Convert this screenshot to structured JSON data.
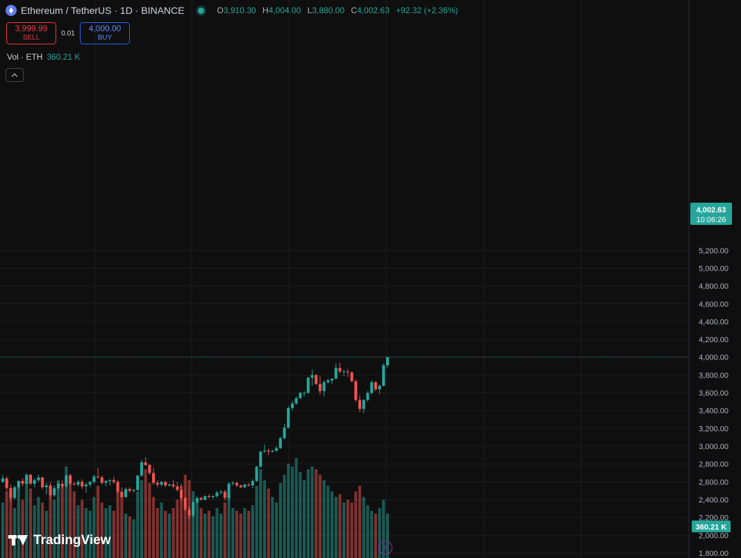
{
  "header": {
    "symbol_title": "Ethereum / TetherUS · 1D · BINANCE",
    "ohlc": {
      "o_label": "O",
      "o": "3,910.30",
      "h_label": "H",
      "h": "4,004.00",
      "l_label": "L",
      "l": "3,880.00",
      "c_label": "C",
      "c": "4,002.63",
      "change": "+92.32 (+2.36%)"
    }
  },
  "trade": {
    "sell_price": "3,999.99",
    "sell_label": "SELL",
    "spread": "0.01",
    "buy_price": "4,000.00",
    "buy_label": "BUY"
  },
  "volume_legend": {
    "label": "Vol · ETH",
    "value": "360.21 K"
  },
  "price_tag": {
    "price": "4,002.63",
    "countdown": "10:06:26"
  },
  "volume_tag": "360.21 K",
  "brand": "TradingView",
  "colors": {
    "up": "#26a69a",
    "down": "#ef5350",
    "background": "#0f0f0f",
    "grid": "#1e1e1e"
  },
  "icons": [
    "ethereum-coin-icon",
    "market-open-dot-icon",
    "collapse-chevron-icon",
    "tradingview-logo-icon",
    "lightning-icon"
  ],
  "chart_data": {
    "type": "candlestick",
    "title": "Ethereum / TetherUS · 1D · BINANCE",
    "ylim": [
      1800,
      5300
    ],
    "y_ticks": [
      "5,200.00",
      "5,000.00",
      "4,800.00",
      "4,600.00",
      "4,400.00",
      "4,200.00",
      "4,000.00",
      "3,800.00",
      "3,600.00",
      "3,400.00",
      "3,200.00",
      "3,000.00",
      "2,800.00",
      "2,600.00",
      "2,400.00",
      "2,200.00",
      "2,000.00",
      "1,800.00"
    ],
    "y_tick_values": [
      5200,
      5000,
      4800,
      4600,
      4400,
      4200,
      4000,
      3800,
      3600,
      3400,
      3200,
      3000,
      2800,
      2600,
      2400,
      2200,
      2000,
      1800
    ],
    "last_price": 4002.63,
    "candles": [
      [
        2600,
        2680,
        2590,
        2640
      ],
      [
        2640,
        2660,
        2500,
        2530
      ],
      [
        2530,
        2570,
        2380,
        2420
      ],
      [
        2420,
        2560,
        2400,
        2540
      ],
      [
        2540,
        2620,
        2520,
        2610
      ],
      [
        2610,
        2640,
        2550,
        2580
      ],
      [
        2580,
        2700,
        2570,
        2680
      ],
      [
        2680,
        2690,
        2560,
        2580
      ],
      [
        2580,
        2640,
        2540,
        2620
      ],
      [
        2620,
        2680,
        2600,
        2650
      ],
      [
        2650,
        2660,
        2520,
        2540
      ],
      [
        2540,
        2590,
        2460,
        2560
      ],
      [
        2560,
        2600,
        2420,
        2450
      ],
      [
        2450,
        2560,
        2430,
        2530
      ],
      [
        2530,
        2600,
        2510,
        2580
      ],
      [
        2580,
        2620,
        2530,
        2550
      ],
      [
        2550,
        2690,
        2540,
        2670
      ],
      [
        2670,
        2690,
        2560,
        2580
      ],
      [
        2580,
        2600,
        2560,
        2570
      ],
      [
        2570,
        2620,
        2550,
        2600
      ],
      [
        2600,
        2630,
        2520,
        2550
      ],
      [
        2550,
        2590,
        2480,
        2570
      ],
      [
        2570,
        2610,
        2540,
        2600
      ],
      [
        2600,
        2680,
        2580,
        2660
      ],
      [
        2660,
        2760,
        2640,
        2650
      ],
      [
        2650,
        2670,
        2570,
        2590
      ],
      [
        2590,
        2620,
        2550,
        2610
      ],
      [
        2610,
        2630,
        2560,
        2620
      ],
      [
        2620,
        2660,
        2580,
        2600
      ],
      [
        2600,
        2620,
        2470,
        2490
      ],
      [
        2490,
        2540,
        2420,
        2430
      ],
      [
        2430,
        2540,
        2420,
        2520
      ],
      [
        2520,
        2540,
        2480,
        2500
      ],
      [
        2500,
        2520,
        2480,
        2510
      ],
      [
        2510,
        2680,
        2500,
        2670
      ],
      [
        2670,
        2850,
        2660,
        2820
      ],
      [
        2820,
        2880,
        2780,
        2790
      ],
      [
        2790,
        2800,
        2680,
        2700
      ],
      [
        2700,
        2760,
        2570,
        2590
      ],
      [
        2590,
        2620,
        2540,
        2570
      ],
      [
        2570,
        2610,
        2550,
        2600
      ],
      [
        2600,
        2610,
        2540,
        2560
      ],
      [
        2560,
        2580,
        2550,
        2570
      ],
      [
        2570,
        2620,
        2530,
        2550
      ],
      [
        2550,
        2600,
        2490,
        2510
      ],
      [
        2510,
        2580,
        2390,
        2420
      ],
      [
        2420,
        2430,
        2270,
        2290
      ],
      [
        2290,
        2330,
        2180,
        2220
      ],
      [
        2220,
        2390,
        2200,
        2370
      ],
      [
        2370,
        2440,
        2360,
        2420
      ],
      [
        2420,
        2430,
        2390,
        2400
      ],
      [
        2400,
        2450,
        2390,
        2440
      ],
      [
        2440,
        2460,
        2420,
        2430
      ],
      [
        2430,
        2450,
        2410,
        2440
      ],
      [
        2440,
        2500,
        2420,
        2480
      ],
      [
        2480,
        2510,
        2460,
        2490
      ],
      [
        2490,
        2510,
        2390,
        2420
      ],
      [
        2420,
        2600,
        2400,
        2580
      ],
      [
        2580,
        2610,
        2560,
        2590
      ],
      [
        2590,
        2600,
        2540,
        2560
      ],
      [
        2560,
        2570,
        2530,
        2540
      ],
      [
        2540,
        2580,
        2530,
        2570
      ],
      [
        2570,
        2590,
        2550,
        2560
      ],
      [
        2560,
        2630,
        2530,
        2610
      ],
      [
        2610,
        2780,
        2600,
        2770
      ],
      [
        2770,
        2950,
        2760,
        2940
      ],
      [
        2940,
        3020,
        2930,
        2950
      ],
      [
        2950,
        2970,
        2900,
        2940
      ],
      [
        2940,
        2960,
        2930,
        2950
      ],
      [
        2950,
        3000,
        2940,
        2980
      ],
      [
        2980,
        3110,
        2970,
        3090
      ],
      [
        3090,
        3250,
        3080,
        3210
      ],
      [
        3210,
        3450,
        3200,
        3430
      ],
      [
        3430,
        3510,
        3400,
        3480
      ],
      [
        3480,
        3560,
        3470,
        3540
      ],
      [
        3540,
        3610,
        3530,
        3600
      ],
      [
        3600,
        3620,
        3560,
        3600
      ],
      [
        3600,
        3780,
        3590,
        3770
      ],
      [
        3770,
        3860,
        3680,
        3800
      ],
      [
        3800,
        3810,
        3690,
        3700
      ],
      [
        3700,
        3790,
        3580,
        3620
      ],
      [
        3620,
        3740,
        3560,
        3720
      ],
      [
        3720,
        3760,
        3700,
        3740
      ],
      [
        3740,
        3760,
        3700,
        3760
      ],
      [
        3760,
        3930,
        3750,
        3880
      ],
      [
        3880,
        3940,
        3820,
        3840
      ],
      [
        3840,
        3860,
        3790,
        3840
      ],
      [
        3840,
        3870,
        3780,
        3830
      ],
      [
        3830,
        3840,
        3720,
        3730
      ],
      [
        3730,
        3750,
        3500,
        3520
      ],
      [
        3520,
        3570,
        3380,
        3420
      ],
      [
        3420,
        3530,
        3370,
        3520
      ],
      [
        3520,
        3620,
        3500,
        3600
      ],
      [
        3600,
        3740,
        3580,
        3720
      ],
      [
        3720,
        3730,
        3620,
        3640
      ],
      [
        3640,
        3690,
        3590,
        3680
      ],
      [
        3680,
        3930,
        3670,
        3910
      ],
      [
        3910,
        4004,
        3880,
        4002.63
      ]
    ],
    "volume": [
      1.0,
      1.2,
      1.1,
      0.9,
      1.3,
      1.05,
      1.45,
      1.25,
      0.95,
      1.1,
      1.0,
      0.85,
      1.2,
      1.05,
      1.4,
      1.3,
      1.65,
      1.5,
      1.2,
      0.95,
      1.05,
      0.9,
      0.85,
      1.1,
      1.3,
      1.0,
      0.9,
      0.95,
      0.85,
      1.2,
      1.1,
      0.8,
      0.75,
      0.7,
      1.2,
      1.4,
      1.6,
      1.35,
      1.1,
      0.9,
      1.0,
      0.85,
      0.8,
      0.9,
      1.05,
      1.3,
      1.5,
      1.4,
      1.2,
      1.0,
      0.9,
      0.8,
      0.85,
      0.75,
      0.9,
      0.8,
      1.0,
      1.2,
      0.9,
      0.85,
      0.8,
      0.9,
      0.85,
      0.95,
      1.3,
      1.6,
      1.4,
      1.25,
      1.1,
      1.0,
      1.35,
      1.5,
      1.7,
      1.65,
      1.8,
      1.55,
      1.4,
      1.6,
      1.65,
      1.6,
      1.5,
      1.4,
      1.3,
      1.2,
      1.1,
      1.15,
      1.0,
      1.05,
      1.0,
      1.2,
      1.3,
      1.1,
      0.95,
      0.85,
      0.8,
      0.9,
      1.05,
      0.8
    ]
  }
}
